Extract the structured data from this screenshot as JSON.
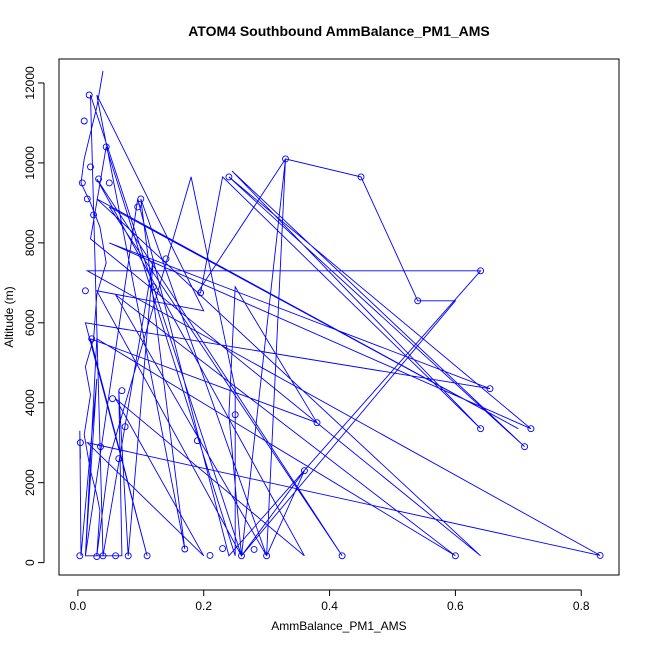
{
  "chart_data": {
    "type": "line",
    "title": "ATOM4 Southbound AmmBalance_PM1_AMS",
    "xlabel": "AmmBalance_PM1_AMS",
    "ylabel": "Altitude (m)",
    "xlim": [
      -0.03,
      0.86
    ],
    "ylim": [
      -310,
      12600
    ],
    "xticks": [
      0.0,
      0.2,
      0.4,
      0.6,
      0.8
    ],
    "xtick_labels": [
      "0.0",
      "0.2",
      "0.4",
      "0.6",
      "0.8"
    ],
    "yticks": [
      0,
      2000,
      4000,
      6000,
      8000,
      10000,
      12000
    ],
    "ytick_labels": [
      "0",
      "2000",
      "4000",
      "6000",
      "8000",
      "10000",
      "12000"
    ],
    "grid": false,
    "series_color": "#0000ff",
    "series": [
      {
        "x": [
          0.003,
          0.004,
          0.007,
          0.01,
          0.012,
          0.015,
          0.018,
          0.02,
          0.022,
          0.025,
          0.03,
          0.033,
          0.036,
          0.04,
          0.045,
          0.05,
          0.055,
          0.06,
          0.065,
          0.07,
          0.075,
          0.08,
          0.095,
          0.1,
          0.11,
          0.12,
          0.14,
          0.17,
          0.19,
          0.195,
          0.21,
          0.23,
          0.24,
          0.25,
          0.26,
          0.28,
          0.3,
          0.33,
          0.36,
          0.38,
          0.42,
          0.45,
          0.54,
          0.6,
          0.64,
          0.64,
          0.655,
          0.71,
          0.72,
          0.83
        ],
        "y": [
          170,
          3000,
          9500,
          11050,
          6800,
          9100,
          11700,
          9900,
          5600,
          8700,
          150,
          9600,
          2900,
          170,
          10400,
          9500,
          4100,
          170,
          2600,
          4300,
          3400,
          170,
          8900,
          9100,
          170,
          6900,
          7600,
          340,
          3050,
          6750,
          180,
          350,
          9650,
          3700,
          170,
          330,
          170,
          10100,
          2300,
          3500,
          170,
          9650,
          6550,
          170,
          7300,
          3350,
          4350,
          2900,
          3350,
          180
        ],
        "path": [
          [
            0.04,
            12300
          ],
          [
            0.03,
            11400
          ],
          [
            0.01,
            10100
          ],
          [
            0.005,
            9500
          ],
          [
            0.02,
            9000
          ],
          [
            0.035,
            8400
          ],
          [
            0.045,
            7500
          ],
          [
            0.03,
            6700
          ],
          [
            0.025,
            5600
          ],
          [
            0.012,
            4900
          ],
          [
            0.02,
            4200
          ],
          [
            0.01,
            3200
          ],
          [
            0.02,
            2300
          ],
          [
            0.03,
            1700
          ],
          [
            0.035,
            1300
          ],
          [
            0.03,
            170
          ],
          [
            0.05,
            2600
          ],
          [
            0.18,
            9650
          ],
          [
            0.25,
            4350
          ],
          [
            0.25,
            170
          ],
          [
            0.045,
            10400
          ],
          [
            0.02,
            8100
          ],
          [
            0.64,
            170
          ],
          [
            0.03,
            9100
          ],
          [
            0.7,
            3350
          ],
          [
            0.05,
            8900
          ],
          [
            0.42,
            170
          ],
          [
            0.03,
            9600
          ],
          [
            0.36,
            170
          ],
          [
            0.06,
            4100
          ],
          [
            0.2,
            170
          ],
          [
            0.015,
            3000
          ],
          [
            0.83,
            180
          ],
          [
            0.015,
            7300
          ],
          [
            0.64,
            7300
          ],
          [
            0.24,
            170
          ],
          [
            0.095,
            9100
          ],
          [
            0.012,
            170
          ],
          [
            0.03,
            5600
          ],
          [
            0.6,
            170
          ],
          [
            0.06,
            6700
          ],
          [
            0.3,
            170
          ],
          [
            0.1,
            9100
          ],
          [
            0.17,
            340
          ],
          [
            0.03,
            11700
          ],
          [
            0.2,
            6300
          ],
          [
            0.03,
            6800
          ],
          [
            0.26,
            170
          ],
          [
            0.6,
            6550
          ],
          [
            0.54,
            6550
          ],
          [
            0.45,
            9650
          ],
          [
            0.33,
            10100
          ],
          [
            0.19,
            6750
          ],
          [
            0.195,
            6750
          ],
          [
            0.23,
            9650
          ],
          [
            0.64,
            3350
          ],
          [
            0.245,
            9800
          ],
          [
            0.71,
            2900
          ],
          [
            0.24,
            9650
          ],
          [
            0.72,
            3350
          ],
          [
            0.05,
            8000
          ],
          [
            0.655,
            4350
          ],
          [
            0.012,
            6000
          ],
          [
            0.11,
            170
          ],
          [
            0.02,
            5600
          ],
          [
            0.38,
            3500
          ],
          [
            0.25,
            6900
          ],
          [
            0.24,
            3700
          ],
          [
            0.26,
            170
          ],
          [
            0.36,
            2300
          ],
          [
            0.3,
            170
          ],
          [
            0.33,
            10100
          ],
          [
            0.26,
            170
          ],
          [
            0.02,
            11700
          ],
          [
            0.04,
            170
          ],
          [
            0.12,
            7600
          ],
          [
            0.08,
            170
          ],
          [
            0.065,
            4300
          ],
          [
            0.07,
            170
          ],
          [
            0.012,
            170
          ],
          [
            0.03,
            4600
          ],
          [
            0.005,
            170
          ],
          [
            0.003,
            3300
          ],
          [
            0.004,
            2600
          ]
        ]
      }
    ]
  }
}
